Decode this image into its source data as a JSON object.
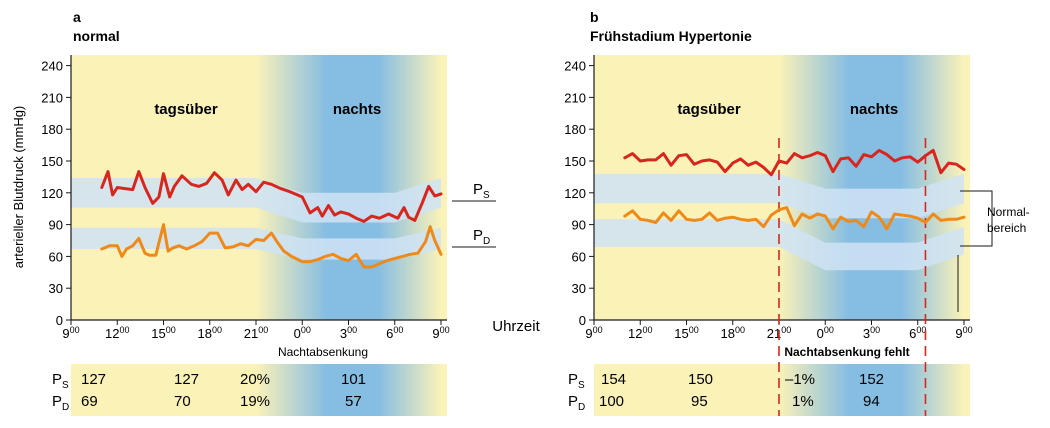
{
  "figure": {
    "ylabel": "arterieller Blutdruck (mmHg)",
    "xlabel": "Uhrzeit",
    "series_labels": {
      "systolic": "P",
      "systolic_sub": "S",
      "diastolic": "P",
      "diastolic_sub": "D"
    },
    "normal_range_label": [
      "Normal-",
      "bereich"
    ]
  },
  "colors": {
    "day": "#fbf2b8",
    "night": "#86bde3",
    "band": "#cfe3f4",
    "systolic": "#d7261e",
    "diastolic": "#ee8a1a",
    "dashed": "#d7261e"
  },
  "chart_data": [
    {
      "type": "line",
      "panel_letter": "a",
      "title": "normal",
      "period_labels": {
        "day": "tagsüber",
        "night": "nachts"
      },
      "ylim": [
        0,
        250
      ],
      "yticks": [
        0,
        30,
        60,
        90,
        120,
        150,
        180,
        210,
        240
      ],
      "xticks": [
        "9",
        "12",
        "15",
        "18",
        "21",
        "0",
        "3",
        "6",
        "9"
      ],
      "xtick_sup": "00",
      "series": [
        {
          "name": "PS",
          "x": [
            11.0,
            11.4,
            11.7,
            12.0,
            12.5,
            13.0,
            13.4,
            13.8,
            14.3,
            14.7,
            15.0,
            15.4,
            15.7,
            16.2,
            16.8,
            17.3,
            17.8,
            18.3,
            18.8,
            19.2,
            19.7,
            20.1,
            20.5,
            21.0,
            21.5,
            22.0,
            22.6,
            23.2,
            24.0,
            24.5,
            25.0,
            25.3,
            25.7,
            26.1,
            26.5,
            27.0,
            27.5,
            28.0,
            28.5,
            29.0,
            29.6,
            30.2,
            30.6,
            30.9,
            31.3,
            31.8,
            32.2,
            32.6,
            33.0
          ],
          "y": [
            125,
            140,
            118,
            125,
            124,
            123,
            140,
            125,
            110,
            116,
            138,
            116,
            126,
            136,
            128,
            126,
            129,
            139,
            132,
            118,
            132,
            123,
            128,
            121,
            130,
            128,
            124,
            121,
            116,
            101,
            106,
            98,
            108,
            99,
            102,
            100,
            96,
            93,
            98,
            96,
            100,
            96,
            106,
            97,
            94,
            111,
            126,
            117,
            119
          ]
        },
        {
          "name": "PD",
          "x": [
            11.0,
            11.5,
            12.0,
            12.3,
            12.6,
            13.0,
            13.4,
            13.8,
            14.1,
            14.5,
            15.0,
            15.3,
            15.6,
            16.0,
            16.5,
            17.0,
            17.5,
            18.0,
            18.5,
            19.0,
            19.5,
            20.0,
            20.5,
            21.0,
            21.5,
            22.0,
            22.4,
            22.8,
            23.3,
            24.0,
            24.5,
            25.0,
            25.5,
            26.0,
            26.5,
            27.0,
            27.5,
            28.0,
            28.5,
            29.0,
            29.5,
            30.0,
            30.5,
            31.0,
            31.5,
            32.0,
            32.3,
            32.6,
            33.0
          ],
          "y": [
            67,
            70,
            70,
            60,
            67,
            70,
            77,
            63,
            61,
            61,
            90,
            65,
            68,
            70,
            67,
            70,
            74,
            82,
            82,
            68,
            69,
            72,
            70,
            76,
            75,
            82,
            73,
            65,
            60,
            55,
            55,
            57,
            60,
            62,
            58,
            56,
            62,
            50,
            50,
            53,
            56,
            58,
            60,
            62,
            63,
            74,
            88,
            75,
            62
          ]
        }
      ],
      "bands": [
        {
          "name": "PS",
          "x": [
            9,
            21,
            24,
            30,
            33
          ],
          "center": [
            120,
            120,
            106,
            106,
            120
          ],
          "half_width": 14
        },
        {
          "name": "PD",
          "x": [
            9,
            21,
            24,
            30,
            33
          ],
          "center": [
            77,
            77,
            67,
            67,
            77
          ],
          "half_width": 10
        }
      ],
      "table": {
        "title": "Nachtabsenkung",
        "rows": [
          {
            "label": "P",
            "sub": "S",
            "day1": "127",
            "day2": "127",
            "pct": "20%",
            "night": "101"
          },
          {
            "label": "P",
            "sub": "D",
            "day1": "69",
            "day2": "70",
            "pct": "19%",
            "night": "57"
          }
        ]
      }
    },
    {
      "type": "line",
      "panel_letter": "b",
      "title": "Frühstadium Hypertonie",
      "period_labels": {
        "day": "tagsüber",
        "night": "nachts"
      },
      "ylim": [
        0,
        250
      ],
      "yticks": [
        0,
        30,
        60,
        90,
        120,
        150,
        180,
        210,
        240
      ],
      "xticks": [
        "9",
        "12",
        "15",
        "18",
        "21",
        "0",
        "3",
        "6",
        "9"
      ],
      "xtick_sup": "00",
      "series": [
        {
          "name": "PS",
          "x": [
            11.0,
            11.5,
            12.0,
            12.5,
            13.0,
            13.5,
            14.0,
            14.5,
            15.0,
            15.5,
            16.0,
            16.5,
            17.0,
            17.5,
            18.0,
            18.5,
            19.0,
            19.5,
            20.0,
            20.5,
            21.0,
            21.5,
            22.0,
            22.5,
            23.0,
            23.5,
            24.0,
            24.5,
            25.0,
            25.5,
            26.0,
            26.5,
            27.0,
            27.5,
            28.0,
            28.5,
            29.0,
            29.5,
            30.0,
            30.5,
            31.0,
            31.5,
            32.0,
            32.5,
            33.0
          ],
          "y": [
            153,
            157,
            150,
            151,
            151,
            157,
            146,
            155,
            156,
            147,
            150,
            151,
            149,
            140,
            148,
            152,
            146,
            149,
            144,
            137,
            150,
            148,
            157,
            153,
            155,
            158,
            155,
            140,
            152,
            153,
            145,
            156,
            154,
            160,
            156,
            150,
            153,
            154,
            149,
            155,
            160,
            139,
            148,
            147,
            142
          ]
        },
        {
          "name": "PD",
          "x": [
            11.0,
            11.5,
            12.0,
            12.5,
            13.0,
            13.5,
            14.0,
            14.5,
            15.0,
            15.5,
            16.0,
            16.5,
            17.0,
            17.5,
            18.0,
            18.5,
            19.0,
            19.5,
            20.0,
            20.5,
            21.0,
            21.5,
            22.0,
            22.5,
            23.0,
            23.5,
            24.0,
            24.5,
            25.0,
            25.5,
            26.0,
            26.5,
            27.0,
            27.5,
            28.0,
            28.5,
            29.0,
            29.5,
            30.0,
            30.5,
            31.0,
            31.5,
            32.0,
            32.5,
            33.0
          ],
          "y": [
            98,
            103,
            95,
            94,
            92,
            101,
            94,
            103,
            95,
            94,
            95,
            101,
            94,
            96,
            97,
            95,
            94,
            95,
            88,
            99,
            104,
            106,
            89,
            100,
            96,
            100,
            98,
            86,
            97,
            93,
            94,
            88,
            102,
            97,
            86,
            100,
            99,
            98,
            96,
            92,
            100,
            94,
            95,
            95,
            97
          ]
        }
      ],
      "bands": [
        {
          "name": "PS",
          "x": [
            9,
            21,
            24,
            30,
            33
          ],
          "center": [
            124,
            124,
            110,
            110,
            124
          ],
          "half_width": 14
        },
        {
          "name": "PD",
          "x": [
            9,
            21,
            24,
            30,
            33
          ],
          "center": [
            82,
            82,
            60,
            60,
            75
          ],
          "half_width": 13
        }
      ],
      "markers": [
        21,
        30.5
      ],
      "table": {
        "title": "Nachtabsenkung fehlt",
        "rows": [
          {
            "label": "P",
            "sub": "S",
            "day1": "154",
            "day2": "150",
            "pct": "–1%",
            "night": "152"
          },
          {
            "label": "P",
            "sub": "D",
            "day1": "100",
            "day2": "95",
            "pct": "1%",
            "night": "94"
          }
        ]
      }
    }
  ]
}
